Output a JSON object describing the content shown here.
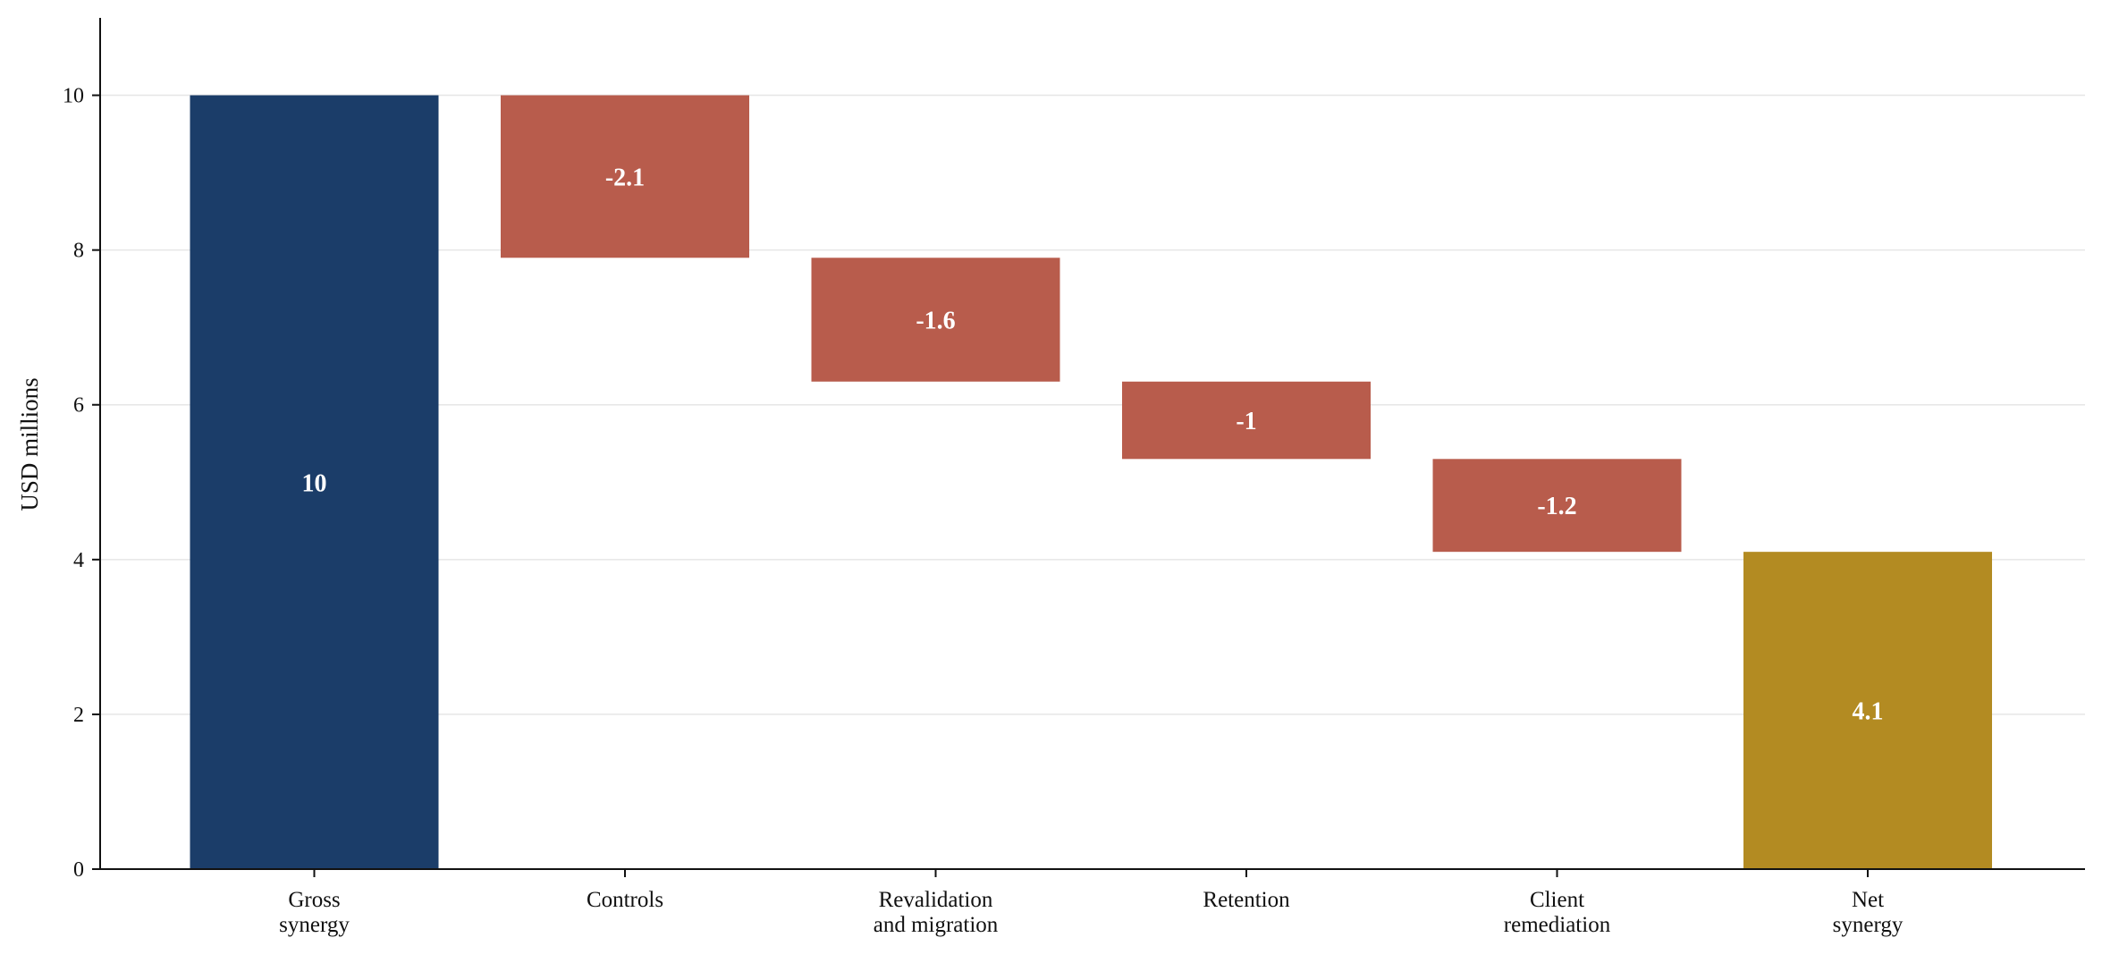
{
  "chart_data": {
    "type": "waterfall",
    "title": "",
    "xlabel": "",
    "ylabel": "USD millions",
    "ylim": [
      0,
      11
    ],
    "yticks": [
      0,
      2,
      4,
      6,
      8,
      10
    ],
    "grid": "horizontal",
    "legend": "none",
    "categories": [
      [
        "Gross",
        "synergy"
      ],
      [
        "Controls"
      ],
      [
        "Revalidation",
        "and migration"
      ],
      [
        "Retention"
      ],
      [
        "Client",
        "remediation"
      ],
      [
        "Net",
        "synergy"
      ]
    ],
    "steps": [
      {
        "kind": "total",
        "value": 10,
        "label": "10"
      },
      {
        "kind": "delta",
        "value": -2.1,
        "label": "-2.1"
      },
      {
        "kind": "delta",
        "value": -1.6,
        "label": "-1.6"
      },
      {
        "kind": "delta",
        "value": -1.0,
        "label": "-1"
      },
      {
        "kind": "delta",
        "value": -1.2,
        "label": "-1.2"
      },
      {
        "kind": "total",
        "value": 4.1,
        "label": "4.1"
      }
    ],
    "colors": {
      "total_start": "#1b3d69",
      "decrease": "#b85c4c",
      "total_end": "#b38b22",
      "grid": "#e6e6e6",
      "axis": "#111111"
    }
  }
}
